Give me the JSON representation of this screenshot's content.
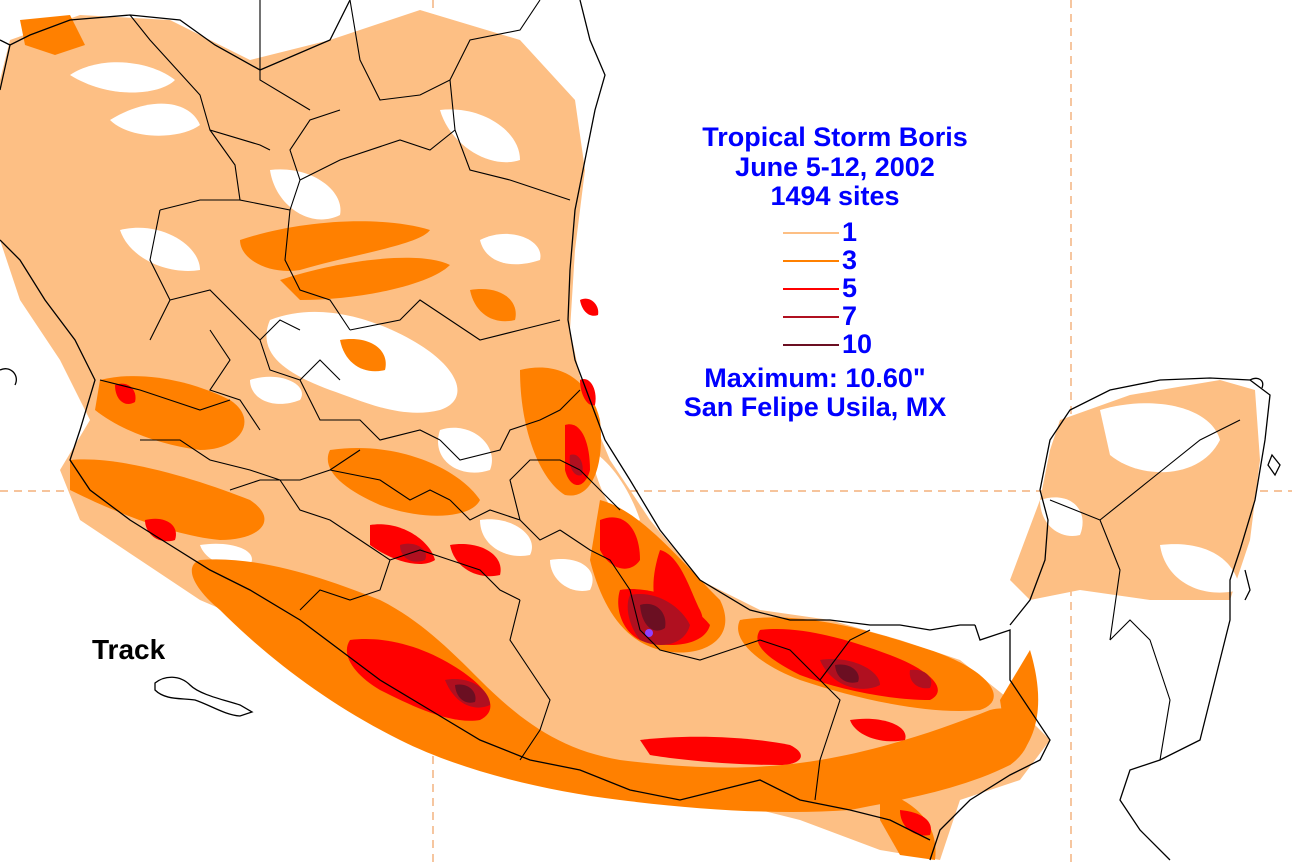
{
  "title": {
    "storm_name": "Tropical Storm Boris",
    "dates": "June 5-12, 2002",
    "sites": "1494 sites"
  },
  "legend": {
    "items": [
      {
        "label": "1",
        "color": "#fdbf84"
      },
      {
        "label": "3",
        "color": "#ff8000"
      },
      {
        "label": "5",
        "color": "#ff0000"
      },
      {
        "label": "7",
        "color": "#b01020"
      },
      {
        "label": "10",
        "color": "#6b0f22"
      }
    ]
  },
  "maximum": {
    "value_text": "Maximum:  10.60\"",
    "location": "San Felipe Usila, MX"
  },
  "track_label": "Track",
  "colors": {
    "rain_1": "#fdbf84",
    "rain_3": "#ff8000",
    "rain_5": "#ff0000",
    "rain_7": "#b01020",
    "rain_10": "#6b0f22",
    "max_marker": "#9040ff",
    "text": "#0000ff",
    "gridline": "#f0a060",
    "border": "#000000"
  }
}
